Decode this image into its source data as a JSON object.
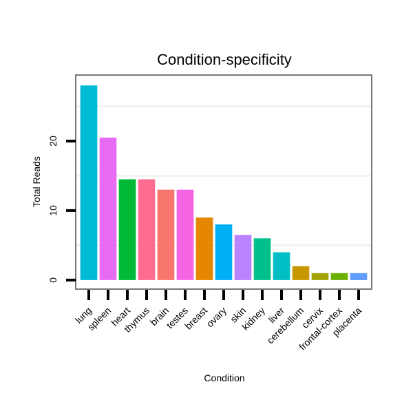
{
  "chart_data": {
    "type": "bar",
    "title": "Condition-specificity",
    "xlabel": "Condition",
    "ylabel": "Total Reads",
    "categories": [
      "lung",
      "spleen",
      "heart",
      "thymus",
      "brain",
      "testes",
      "breast",
      "ovary",
      "skin",
      "kidney",
      "liver",
      "cerebellum",
      "cervix",
      "frontal-cortex",
      "placenta"
    ],
    "values": [
      28,
      20.5,
      14.5,
      14.5,
      13,
      13,
      9,
      8,
      6.5,
      6,
      4,
      2,
      1,
      1,
      1
    ],
    "colors": [
      "#00BBD6",
      "#E76BF3",
      "#00BA38",
      "#FF6C91",
      "#F8766D",
      "#F564E3",
      "#E58700",
      "#00B0F6",
      "#B983FF",
      "#00C08B",
      "#00BFC4",
      "#C99800",
      "#A3A500",
      "#6BB100",
      "#619CFF"
    ],
    "yticks": [
      0,
      10,
      20
    ],
    "ylim": [
      -1.3,
      29.5
    ],
    "grid": true,
    "legend": "none"
  }
}
